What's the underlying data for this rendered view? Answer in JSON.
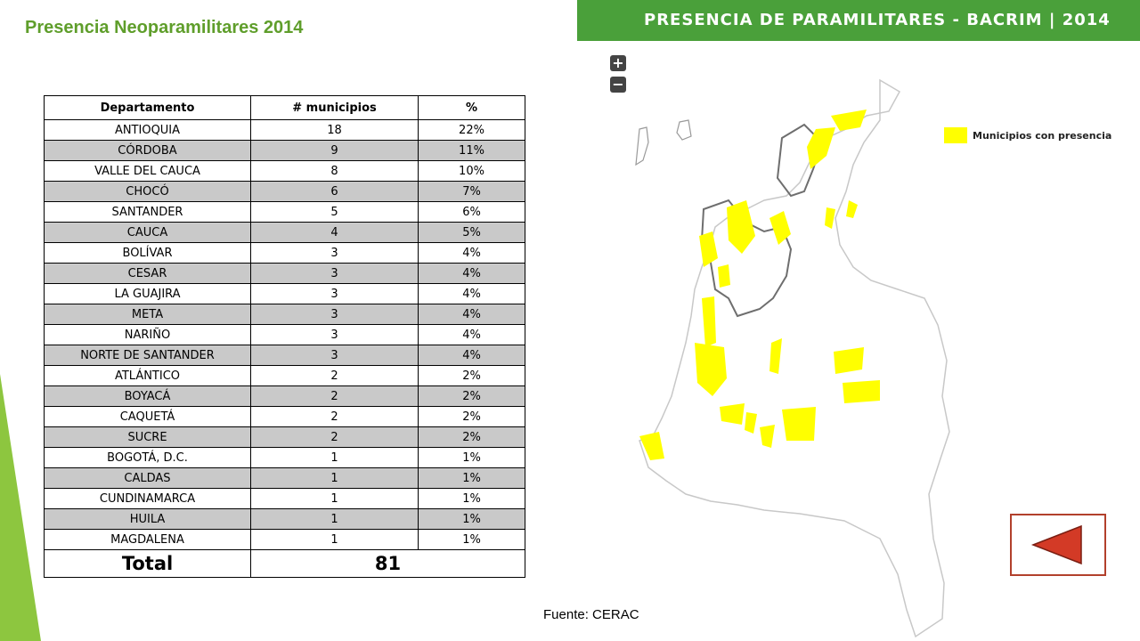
{
  "page": {
    "title": "Presencia Neoparamilitares 2014",
    "source": "Fuente: CERAC"
  },
  "table": {
    "headers": [
      "Departamento",
      "# municipios",
      "%"
    ],
    "rows": [
      [
        "ANTIOQUIA",
        "18",
        "22%"
      ],
      [
        "CÓRDOBA",
        "9",
        "11%"
      ],
      [
        "VALLE DEL CAUCA",
        "8",
        "10%"
      ],
      [
        "CHOCÓ",
        "6",
        "7%"
      ],
      [
        "SANTANDER",
        "5",
        "6%"
      ],
      [
        "CAUCA",
        "4",
        "5%"
      ],
      [
        "BOLÍVAR",
        "3",
        "4%"
      ],
      [
        "CESAR",
        "3",
        "4%"
      ],
      [
        "LA GUAJIRA",
        "3",
        "4%"
      ],
      [
        "META",
        "3",
        "4%"
      ],
      [
        "NARIÑO",
        "3",
        "4%"
      ],
      [
        "NORTE DE SANTANDER",
        "3",
        "4%"
      ],
      [
        "ATLÁNTICO",
        "2",
        "2%"
      ],
      [
        "BOYACÁ",
        "2",
        "2%"
      ],
      [
        "CAQUETÁ",
        "2",
        "2%"
      ],
      [
        "SUCRE",
        "2",
        "2%"
      ],
      [
        "BOGOTÁ, D.C.",
        "1",
        "1%"
      ],
      [
        "CALDAS",
        "1",
        "1%"
      ],
      [
        "CUNDINAMARCA",
        "1",
        "1%"
      ],
      [
        "HUILA",
        "1",
        "1%"
      ],
      [
        "MAGDALENA",
        "1",
        "1%"
      ]
    ],
    "total_label": "Total",
    "total_value": "81"
  },
  "map": {
    "header": "PRESENCIA DE PARAMILITARES - BACRIM | 2014",
    "zoom_in": "+",
    "zoom_out": "−",
    "legend_label": "Municipios con presencia",
    "highlight_color": "#ffff00",
    "header_color": "#4aa03a"
  },
  "colors": {
    "title": "#5f9e2b",
    "accent": "#8dc63f",
    "alt_row": "#c9c9c9",
    "back_arrow": "#d33a26"
  },
  "icons": {
    "back": "triangle-left-icon"
  }
}
